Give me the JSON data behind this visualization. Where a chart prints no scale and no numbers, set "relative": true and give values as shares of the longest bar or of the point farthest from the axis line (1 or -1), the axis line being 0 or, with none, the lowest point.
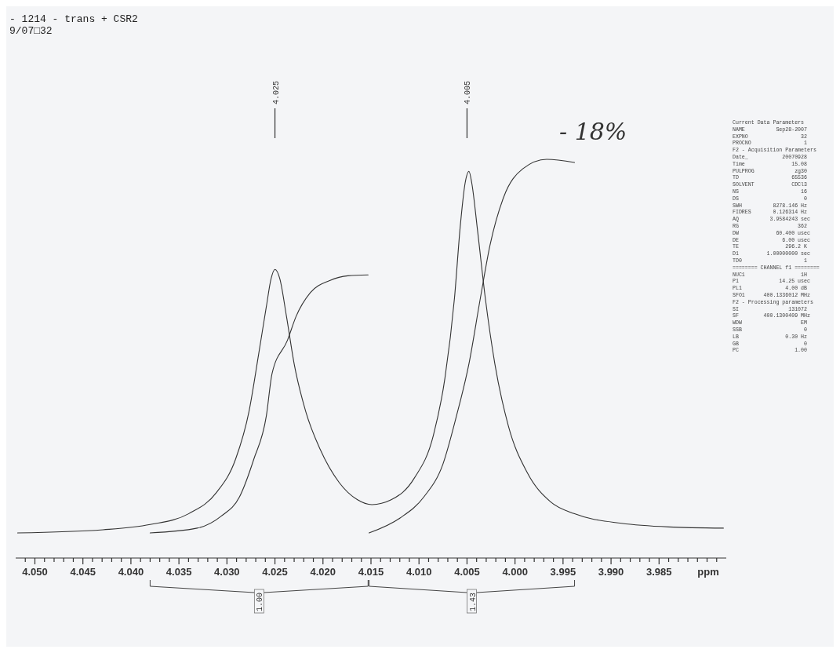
{
  "chart_data": {
    "type": "line",
    "title": "- 1214 - trans + CSR2",
    "subtitle": "9/07□32",
    "xlabel": "ppm",
    "relative": true,
    "xlim": [
      4.052,
      3.978
    ],
    "xticks": [
      {
        "value": 4.051,
        "label": null
      },
      {
        "value": 4.05,
        "label": "4.050"
      },
      {
        "value": 4.049,
        "label": null
      },
      {
        "value": 4.048,
        "label": null
      },
      {
        "value": 4.047,
        "label": null
      },
      {
        "value": 4.046,
        "label": null
      },
      {
        "value": 4.045,
        "label": "4.045"
      },
      {
        "value": 4.044,
        "label": null
      },
      {
        "value": 4.043,
        "label": null
      },
      {
        "value": 4.042,
        "label": null
      },
      {
        "value": 4.041,
        "label": null
      },
      {
        "value": 4.04,
        "label": "4.040"
      },
      {
        "value": 4.039,
        "label": null
      },
      {
        "value": 4.038,
        "label": null
      },
      {
        "value": 4.037,
        "label": null
      },
      {
        "value": 4.036,
        "label": null
      },
      {
        "value": 4.035,
        "label": "4.035"
      },
      {
        "value": 4.034,
        "label": null
      },
      {
        "value": 4.033,
        "label": null
      },
      {
        "value": 4.032,
        "label": null
      },
      {
        "value": 4.031,
        "label": null
      },
      {
        "value": 4.03,
        "label": "4.030"
      },
      {
        "value": 4.029,
        "label": null
      },
      {
        "value": 4.028,
        "label": null
      },
      {
        "value": 4.027,
        "label": null
      },
      {
        "value": 4.026,
        "label": null
      },
      {
        "value": 4.025,
        "label": "4.025"
      },
      {
        "value": 4.024,
        "label": null
      },
      {
        "value": 4.023,
        "label": null
      },
      {
        "value": 4.022,
        "label": null
      },
      {
        "value": 4.021,
        "label": null
      },
      {
        "value": 4.02,
        "label": "4.020"
      },
      {
        "value": 4.019,
        "label": null
      },
      {
        "value": 4.018,
        "label": null
      },
      {
        "value": 4.017,
        "label": null
      },
      {
        "value": 4.016,
        "label": null
      },
      {
        "value": 4.015,
        "label": "4.015"
      },
      {
        "value": 4.014,
        "label": null
      },
      {
        "value": 4.013,
        "label": null
      },
      {
        "value": 4.012,
        "label": null
      },
      {
        "value": 4.011,
        "label": null
      },
      {
        "value": 4.01,
        "label": "4.010"
      },
      {
        "value": 4.009,
        "label": null
      },
      {
        "value": 4.008,
        "label": null
      },
      {
        "value": 4.007,
        "label": null
      },
      {
        "value": 4.006,
        "label": null
      },
      {
        "value": 4.005,
        "label": "4.005"
      },
      {
        "value": 4.004,
        "label": null
      },
      {
        "value": 4.003,
        "label": null
      },
      {
        "value": 4.002,
        "label": null
      },
      {
        "value": 4.001,
        "label": null
      },
      {
        "value": 4.0,
        "label": "4.000"
      },
      {
        "value": 3.999,
        "label": null
      },
      {
        "value": 3.998,
        "label": null
      },
      {
        "value": 3.997,
        "label": null
      },
      {
        "value": 3.996,
        "label": null
      },
      {
        "value": 3.995,
        "label": "3.995"
      },
      {
        "value": 3.994,
        "label": null
      },
      {
        "value": 3.993,
        "label": null
      },
      {
        "value": 3.992,
        "label": null
      },
      {
        "value": 3.991,
        "label": null
      },
      {
        "value": 3.99,
        "label": "3.990"
      },
      {
        "value": 3.989,
        "label": null
      },
      {
        "value": 3.988,
        "label": null
      },
      {
        "value": 3.987,
        "label": null
      },
      {
        "value": 3.986,
        "label": null
      },
      {
        "value": 3.985,
        "label": "3.985"
      },
      {
        "value": 3.984,
        "label": null
      },
      {
        "value": 3.983,
        "label": null
      },
      {
        "value": 3.982,
        "label": null
      },
      {
        "value": 3.981,
        "label": null
      },
      {
        "value": 3.98,
        "label": null
      },
      {
        "value": 3.979,
        "label": null
      }
    ],
    "series": [
      {
        "color": "#333333",
        "x": [
          4.0518,
          4.0429,
          4.038,
          4.034,
          4.0311,
          4.0291,
          4.0277,
          4.0267,
          4.0259,
          4.0254,
          4.025,
          4.0245,
          4.0238,
          4.023,
          4.0218,
          4.0203,
          4.0183,
          4.0164,
          4.0149,
          4.0129,
          4.0105,
          4.0085,
          4.0073,
          4.0063,
          4.0057,
          4.0052,
          4.0048,
          4.0045,
          4.0039,
          4.0031,
          4.0021,
          4.0007,
          3.9987,
          3.9963,
          3.9938,
          3.9889,
          3.984,
          3.9783
        ],
        "values": [
          0.063,
          0.071,
          0.084,
          0.111,
          0.164,
          0.248,
          0.368,
          0.511,
          0.63,
          0.701,
          0.724,
          0.701,
          0.606,
          0.487,
          0.368,
          0.273,
          0.189,
          0.146,
          0.134,
          0.146,
          0.2,
          0.308,
          0.451,
          0.653,
          0.833,
          0.94,
          0.97,
          0.94,
          0.821,
          0.653,
          0.487,
          0.332,
          0.213,
          0.141,
          0.111,
          0.087,
          0.078,
          0.075
        ]
      },
      {
        "color": "#333333",
        "x": [
          4.038,
          4.0331,
          4.0306,
          4.0287,
          4.0272,
          4.0259,
          4.0253,
          4.0237,
          4.0228,
          4.0213,
          4.0193,
          4.0174,
          4.0153
        ],
        "values": [
          0.063,
          0.075,
          0.105,
          0.153,
          0.248,
          0.356,
          0.463,
          0.546,
          0.606,
          0.666,
          0.696,
          0.708,
          0.71
        ]
      },
      {
        "color": "#333333",
        "x": [
          4.0152,
          4.012,
          4.0095,
          4.0075,
          4.0061,
          4.0048,
          4.0036,
          4.0026,
          4.0012,
          3.9992,
          3.9967,
          3.9938
        ],
        "values": [
          0.063,
          0.1,
          0.153,
          0.236,
          0.356,
          0.487,
          0.653,
          0.785,
          0.904,
          0.976,
          1,
          0.992
        ]
      }
    ],
    "annotations": [
      {
        "text": "4.025",
        "x": 4.025
      },
      {
        "text": "4.005",
        "x": 4.005
      },
      "1.00",
      "1.43",
      "- 18%",
      "Current Data Parameters",
      "NAME          Sep28-2007",
      "EXPNO                 32",
      "PROCNO                 1",
      "F2 - Acquisition Parameters",
      "Date_           20070928",
      "Time               15.08",
      "PULPROG             zg30",
      "TD                 65536",
      "SOLVENT            CDCl3",
      "NS                    16",
      "DS                     0",
      "SWH          8278.146 Hz",
      "FIDRES       0.126314 Hz",
      "AQ          3.9584243 sec",
      "RG                   362",
      "DW            60.400 usec",
      "DE              6.00 usec",
      "TE               296.2 K",
      "D1         1.00000000 sec",
      "TD0                    1",
      "======== CHANNEL f1 ========",
      "NUC1                  1H",
      "P1             14.25 usec",
      "PL1              4.00 dB",
      "SFO1      400.1336012 MHz",
      "F2 - Processing parameters",
      "SI                131072",
      "SF        400.1300409 MHz",
      "WDW                   EM",
      "SSB                    0",
      "LB               0.30 Hz",
      "GB                     0",
      "PC                  1.00"
    ]
  }
}
